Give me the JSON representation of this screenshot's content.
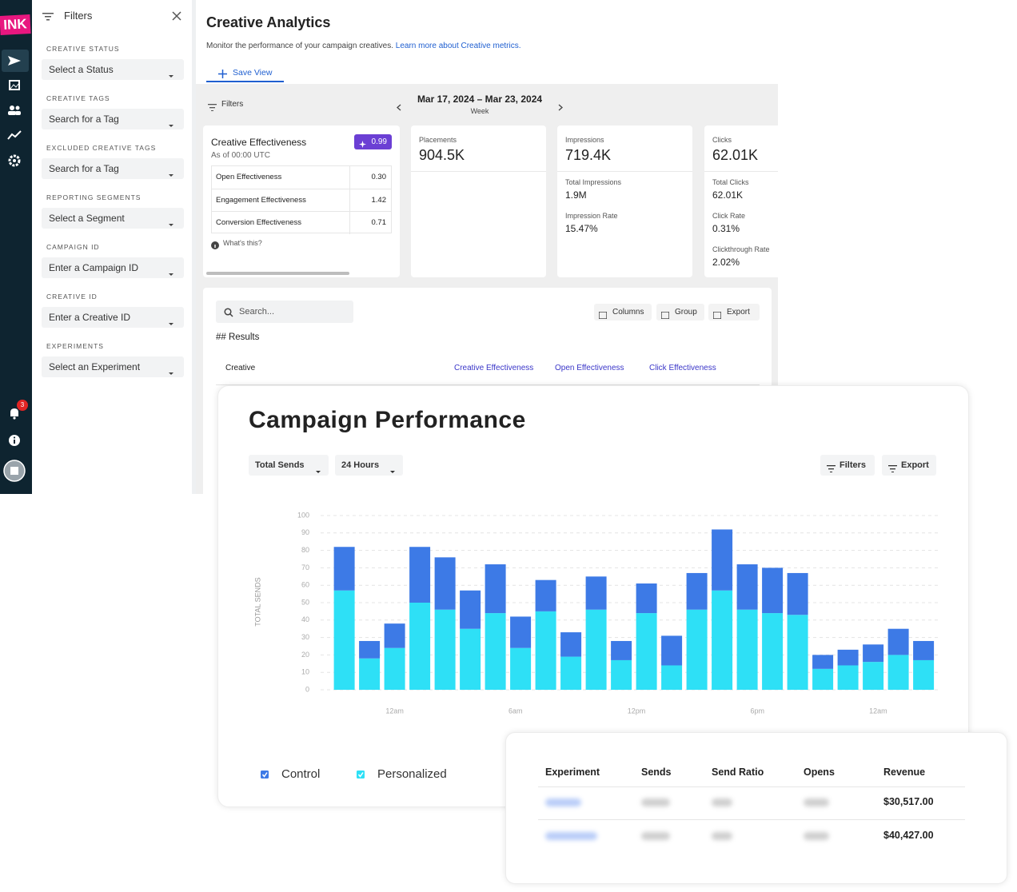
{
  "nav": {
    "logo": "INK",
    "notification_count": "3"
  },
  "filters": {
    "title": "Filters",
    "sections": [
      {
        "label": "CREATIVE STATUS",
        "placeholder": "Select a Status"
      },
      {
        "label": "CREATIVE TAGS",
        "placeholder": "Search for a Tag"
      },
      {
        "label": "EXCLUDED CREATIVE TAGS",
        "placeholder": "Search for a Tag"
      },
      {
        "label": "REPORTING SEGMENTS",
        "placeholder": "Select a Segment"
      },
      {
        "label": "CAMPAIGN ID",
        "placeholder": "Enter a Campaign ID"
      },
      {
        "label": "CREATIVE ID",
        "placeholder": "Enter a Creative ID"
      },
      {
        "label": "EXPERIMENTS",
        "placeholder": "Select an Experiment"
      }
    ]
  },
  "header": {
    "title": "Creative Analytics",
    "description": "Monitor the performance of your campaign creatives.",
    "link": "Learn more about Creative metrics.",
    "save_view": "Save View"
  },
  "toolbar": {
    "filters": "Filters",
    "date_range": "Mar 17, 2024 – Mar 23, 2024",
    "period": "Week"
  },
  "effectiveness_card": {
    "title": "Creative Effectiveness",
    "score": "0.99",
    "subtitle": "As of 00:00 UTC",
    "rows": [
      [
        "Open Effectiveness",
        "0.30"
      ],
      [
        "Engagement Effectiveness",
        "1.42"
      ],
      [
        "Conversion Effectiveness",
        "0.71"
      ]
    ],
    "help": "What's this?"
  },
  "metric_cards": [
    {
      "label": "Placements",
      "value": "904.5K"
    },
    {
      "label": "Impressions",
      "value": "719.4K",
      "details": [
        {
          "label": "Total Impressions",
          "value": "1.9M"
        },
        {
          "label": "Impression Rate",
          "value": "15.47%"
        }
      ]
    },
    {
      "label": "Clicks",
      "value": "62.01K",
      "details": [
        {
          "label": "Total Clicks",
          "value": "62.01K"
        },
        {
          "label": "Click Rate",
          "value": "0.31%"
        },
        {
          "label": "Clickthrough Rate",
          "value": "2.02%"
        }
      ]
    }
  ],
  "results": {
    "search": "Search...",
    "buttons": [
      "Columns",
      "Group",
      "Export"
    ],
    "heading": "## Results",
    "columns": [
      "Creative",
      "Creative Effectiveness",
      "Open Effectiveness",
      "Click Effectiveness"
    ]
  },
  "campaign": {
    "title": "Campaign Performance",
    "selectors": [
      "Total Sends",
      "24 Hours"
    ],
    "buttons": [
      "Filters",
      "Export"
    ]
  },
  "chart_data": {
    "type": "bar",
    "stacked": true,
    "ylabel": "TOTAL SENDS",
    "x": [
      -2.5,
      -1.25,
      0,
      1.25,
      2.5,
      3.75,
      5,
      6.25,
      7.5,
      8.75,
      10,
      11.25,
      12.5,
      13.75,
      15,
      16.25,
      17.5,
      18.75,
      20,
      21.25,
      22.5,
      23.75,
      25,
      26.25
    ],
    "series": [
      {
        "name": "Control",
        "color": "#3d7ae6",
        "values": [
          25,
          10,
          14,
          32,
          30,
          22,
          28,
          18,
          18,
          14,
          19,
          11,
          17,
          17,
          21,
          35,
          26,
          26,
          24,
          8,
          9,
          10,
          15,
          11
        ]
      },
      {
        "name": "Personalized",
        "color": "#2ee0f6",
        "values": [
          57,
          18,
          24,
          50,
          46,
          35,
          44,
          24,
          45,
          19,
          46,
          17,
          44,
          14,
          46,
          57,
          46,
          44,
          43,
          12,
          14,
          16,
          20,
          17
        ]
      }
    ],
    "xlim": [
      -3,
      27
    ],
    "xticks": [
      {
        "value": 0,
        "label": "12am"
      },
      {
        "value": 6,
        "label": "6am"
      },
      {
        "value": 12,
        "label": "12pm"
      },
      {
        "value": 18,
        "label": "6pm"
      },
      {
        "value": 24,
        "label": "12am"
      }
    ],
    "ylim": [
      0,
      100
    ],
    "yticks": [
      0,
      10,
      20,
      30,
      40,
      50,
      60,
      70,
      80,
      90,
      100
    ],
    "grid": true,
    "legend": "bottom"
  },
  "experiments": {
    "columns": [
      "Experiment",
      "Sends",
      "Send Ratio",
      "Opens",
      "Revenue"
    ],
    "revenue": [
      "$30,517.00",
      "$40,427.00"
    ]
  }
}
